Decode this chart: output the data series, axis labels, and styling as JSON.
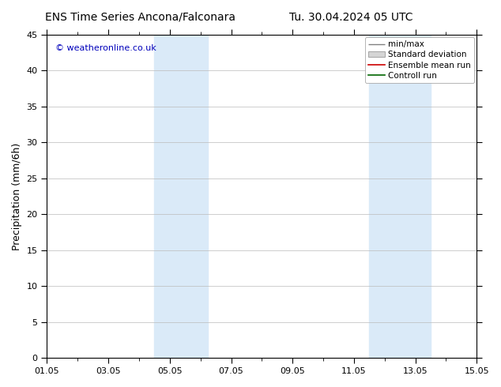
{
  "title_left": "ENS Time Series Ancona/Falconara",
  "title_right": "Tu. 30.04.2024 05 UTC",
  "ylabel": "Precipitation (mm/6h)",
  "watermark": "© weatheronline.co.uk",
  "watermark_color": "#0000bb",
  "ylim": [
    0,
    45
  ],
  "yticks": [
    0,
    5,
    10,
    15,
    20,
    25,
    30,
    35,
    40,
    45
  ],
  "xlim": [
    0,
    14
  ],
  "xtick_labels": [
    "01.05",
    "03.05",
    "05.05",
    "07.05",
    "09.05",
    "11.05",
    "13.05",
    "15.05"
  ],
  "xtick_positions_days": [
    0,
    2,
    4,
    6,
    8,
    10,
    12,
    14
  ],
  "shaded_bands": [
    {
      "x_start_day": 3.5,
      "x_end_day": 5.25
    },
    {
      "x_start_day": 10.5,
      "x_end_day": 12.5
    }
  ],
  "shade_color": "#daeaf8",
  "legend_items": [
    {
      "label": "min/max",
      "type": "minmax_line"
    },
    {
      "label": "Standard deviation",
      "type": "std_box"
    },
    {
      "label": "Ensemble mean run",
      "type": "line",
      "color": "#cc0000"
    },
    {
      "label": "Controll run",
      "type": "line",
      "color": "#006600"
    }
  ],
  "background_color": "#ffffff",
  "grid_color": "#bbbbbb",
  "title_fontsize": 10,
  "ylabel_fontsize": 9,
  "tick_fontsize": 8,
  "legend_fontsize": 7.5,
  "watermark_fontsize": 8
}
